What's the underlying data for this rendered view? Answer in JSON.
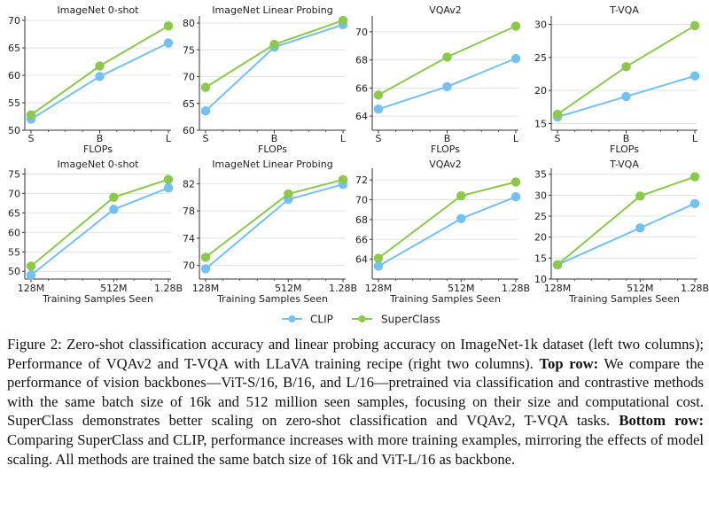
{
  "colors": {
    "clip": "#73c0f5",
    "superclass": "#8cc84b",
    "grid": "#e3e3e3",
    "axis": "#333333"
  },
  "legend": {
    "items": [
      {
        "label": "CLIP",
        "color": "#73c0f5"
      },
      {
        "label": "SuperClass",
        "color": "#8cc84b"
      }
    ],
    "placement": "bottom-center"
  },
  "chart_data": [
    {
      "type": "line",
      "row": "top",
      "title": "ImageNet 0-shot",
      "xlabel": "FLOPs",
      "ylabel": "",
      "x": [
        "S",
        "B",
        "L"
      ],
      "x_scale": "categorical",
      "ylim": [
        50,
        70.5
      ],
      "yticks": [
        50,
        55,
        60,
        65,
        70
      ],
      "series": [
        {
          "name": "CLIP",
          "values": [
            52.0,
            59.8,
            65.9
          ]
        },
        {
          "name": "SuperClass",
          "values": [
            52.8,
            61.7,
            69.0
          ]
        }
      ]
    },
    {
      "type": "line",
      "row": "top",
      "title": "ImageNet Linear Probing",
      "xlabel": "FLOPs",
      "ylabel": "",
      "x": [
        "S",
        "B",
        "L"
      ],
      "x_scale": "categorical",
      "ylim": [
        60,
        81
      ],
      "yticks": [
        60,
        65,
        70,
        75,
        80
      ],
      "series": [
        {
          "name": "CLIP",
          "values": [
            63.6,
            75.5,
            79.7
          ]
        },
        {
          "name": "SuperClass",
          "values": [
            68.0,
            76.0,
            80.5
          ]
        }
      ]
    },
    {
      "type": "line",
      "row": "top",
      "title": "VQAv2",
      "xlabel": "FLOPs",
      "ylabel": "",
      "x": [
        "S",
        "B",
        "L"
      ],
      "x_scale": "categorical",
      "ylim": [
        63,
        71
      ],
      "yticks": [
        64,
        66,
        68,
        70
      ],
      "series": [
        {
          "name": "CLIP",
          "values": [
            64.5,
            66.1,
            68.1
          ]
        },
        {
          "name": "SuperClass",
          "values": [
            65.5,
            68.2,
            70.4
          ]
        }
      ]
    },
    {
      "type": "line",
      "row": "top",
      "title": "T-VQA",
      "xlabel": "FLOPs",
      "ylabel": "",
      "x": [
        "S",
        "B",
        "L"
      ],
      "x_scale": "categorical",
      "ylim": [
        14,
        31
      ],
      "yticks": [
        15,
        20,
        25,
        30
      ],
      "series": [
        {
          "name": "CLIP",
          "values": [
            16.0,
            19.1,
            22.2
          ]
        },
        {
          "name": "SuperClass",
          "values": [
            16.4,
            23.6,
            29.8
          ]
        }
      ]
    },
    {
      "type": "line",
      "row": "bottom",
      "title": "ImageNet 0-shot",
      "xlabel": "Training Samples Seen",
      "ylabel": "",
      "x": [
        "128M",
        "512M",
        "1.28B"
      ],
      "x_values": [
        128,
        512,
        1280
      ],
      "x_scale": "log",
      "ylim": [
        48,
        76
      ],
      "yticks": [
        50,
        55,
        60,
        65,
        70,
        75
      ],
      "series": [
        {
          "name": "CLIP",
          "values": [
            49.0,
            65.9,
            71.4
          ]
        },
        {
          "name": "SuperClass",
          "values": [
            51.3,
            69.0,
            73.6
          ]
        }
      ]
    },
    {
      "type": "line",
      "row": "bottom",
      "title": "ImageNet Linear Probing",
      "xlabel": "Training Samples Seen",
      "ylabel": "",
      "x": [
        "128M",
        "512M",
        "1.28B"
      ],
      "x_values": [
        128,
        512,
        1280
      ],
      "x_scale": "log",
      "ylim": [
        68,
        84
      ],
      "yticks": [
        70,
        74,
        78,
        82
      ],
      "series": [
        {
          "name": "CLIP",
          "values": [
            69.5,
            79.7,
            81.9
          ]
        },
        {
          "name": "SuperClass",
          "values": [
            71.2,
            80.5,
            82.6
          ]
        }
      ]
    },
    {
      "type": "line",
      "row": "bottom",
      "title": "VQAv2",
      "xlabel": "Training Samples Seen",
      "ylabel": "",
      "x": [
        "128M",
        "512M",
        "1.28B"
      ],
      "x_values": [
        128,
        512,
        1280
      ],
      "x_scale": "log",
      "ylim": [
        62,
        73
      ],
      "yticks": [
        64,
        66,
        68,
        70,
        72
      ],
      "series": [
        {
          "name": "CLIP",
          "values": [
            63.3,
            68.1,
            70.3
          ]
        },
        {
          "name": "SuperClass",
          "values": [
            64.1,
            70.4,
            71.8
          ]
        }
      ]
    },
    {
      "type": "line",
      "row": "bottom",
      "title": "T-VQA",
      "xlabel": "Training Samples Seen",
      "ylabel": "",
      "x": [
        "128M",
        "512M",
        "1.28B"
      ],
      "x_values": [
        128,
        512,
        1280
      ],
      "x_scale": "log",
      "ylim": [
        10,
        36
      ],
      "yticks": [
        10,
        15,
        20,
        25,
        30,
        35
      ],
      "series": [
        {
          "name": "CLIP",
          "values": [
            13.4,
            22.2,
            28.0
          ]
        },
        {
          "name": "SuperClass",
          "values": [
            13.4,
            29.8,
            34.4
          ]
        }
      ]
    }
  ],
  "caption": {
    "lead": "Figure 2: Zero-shot classification accuracy and linear probing accuracy on ImageNet-1k dataset (left two columns); Performance of VQAv2 and T-VQA with LLaVA training recipe (right two columns). ",
    "top_label": "Top row:",
    "top_text": " We compare the performance of vision backbones—ViT-S/16, B/16, and L/16—pretrained via classification and contrastive methods with the same batch size of 16k and 512 million seen samples, focusing on their size and computational cost. SuperClass demonstrates better scaling on zero-shot classification and VQAv2, T-VQA tasks. ",
    "bottom_label": "Bottom row:",
    "bottom_text": " Comparing SuperClass and CLIP, performance increases with more training examples, mirroring the effects of model scaling. All methods are trained the same batch size of 16k and ViT-L/16 as backbone."
  }
}
